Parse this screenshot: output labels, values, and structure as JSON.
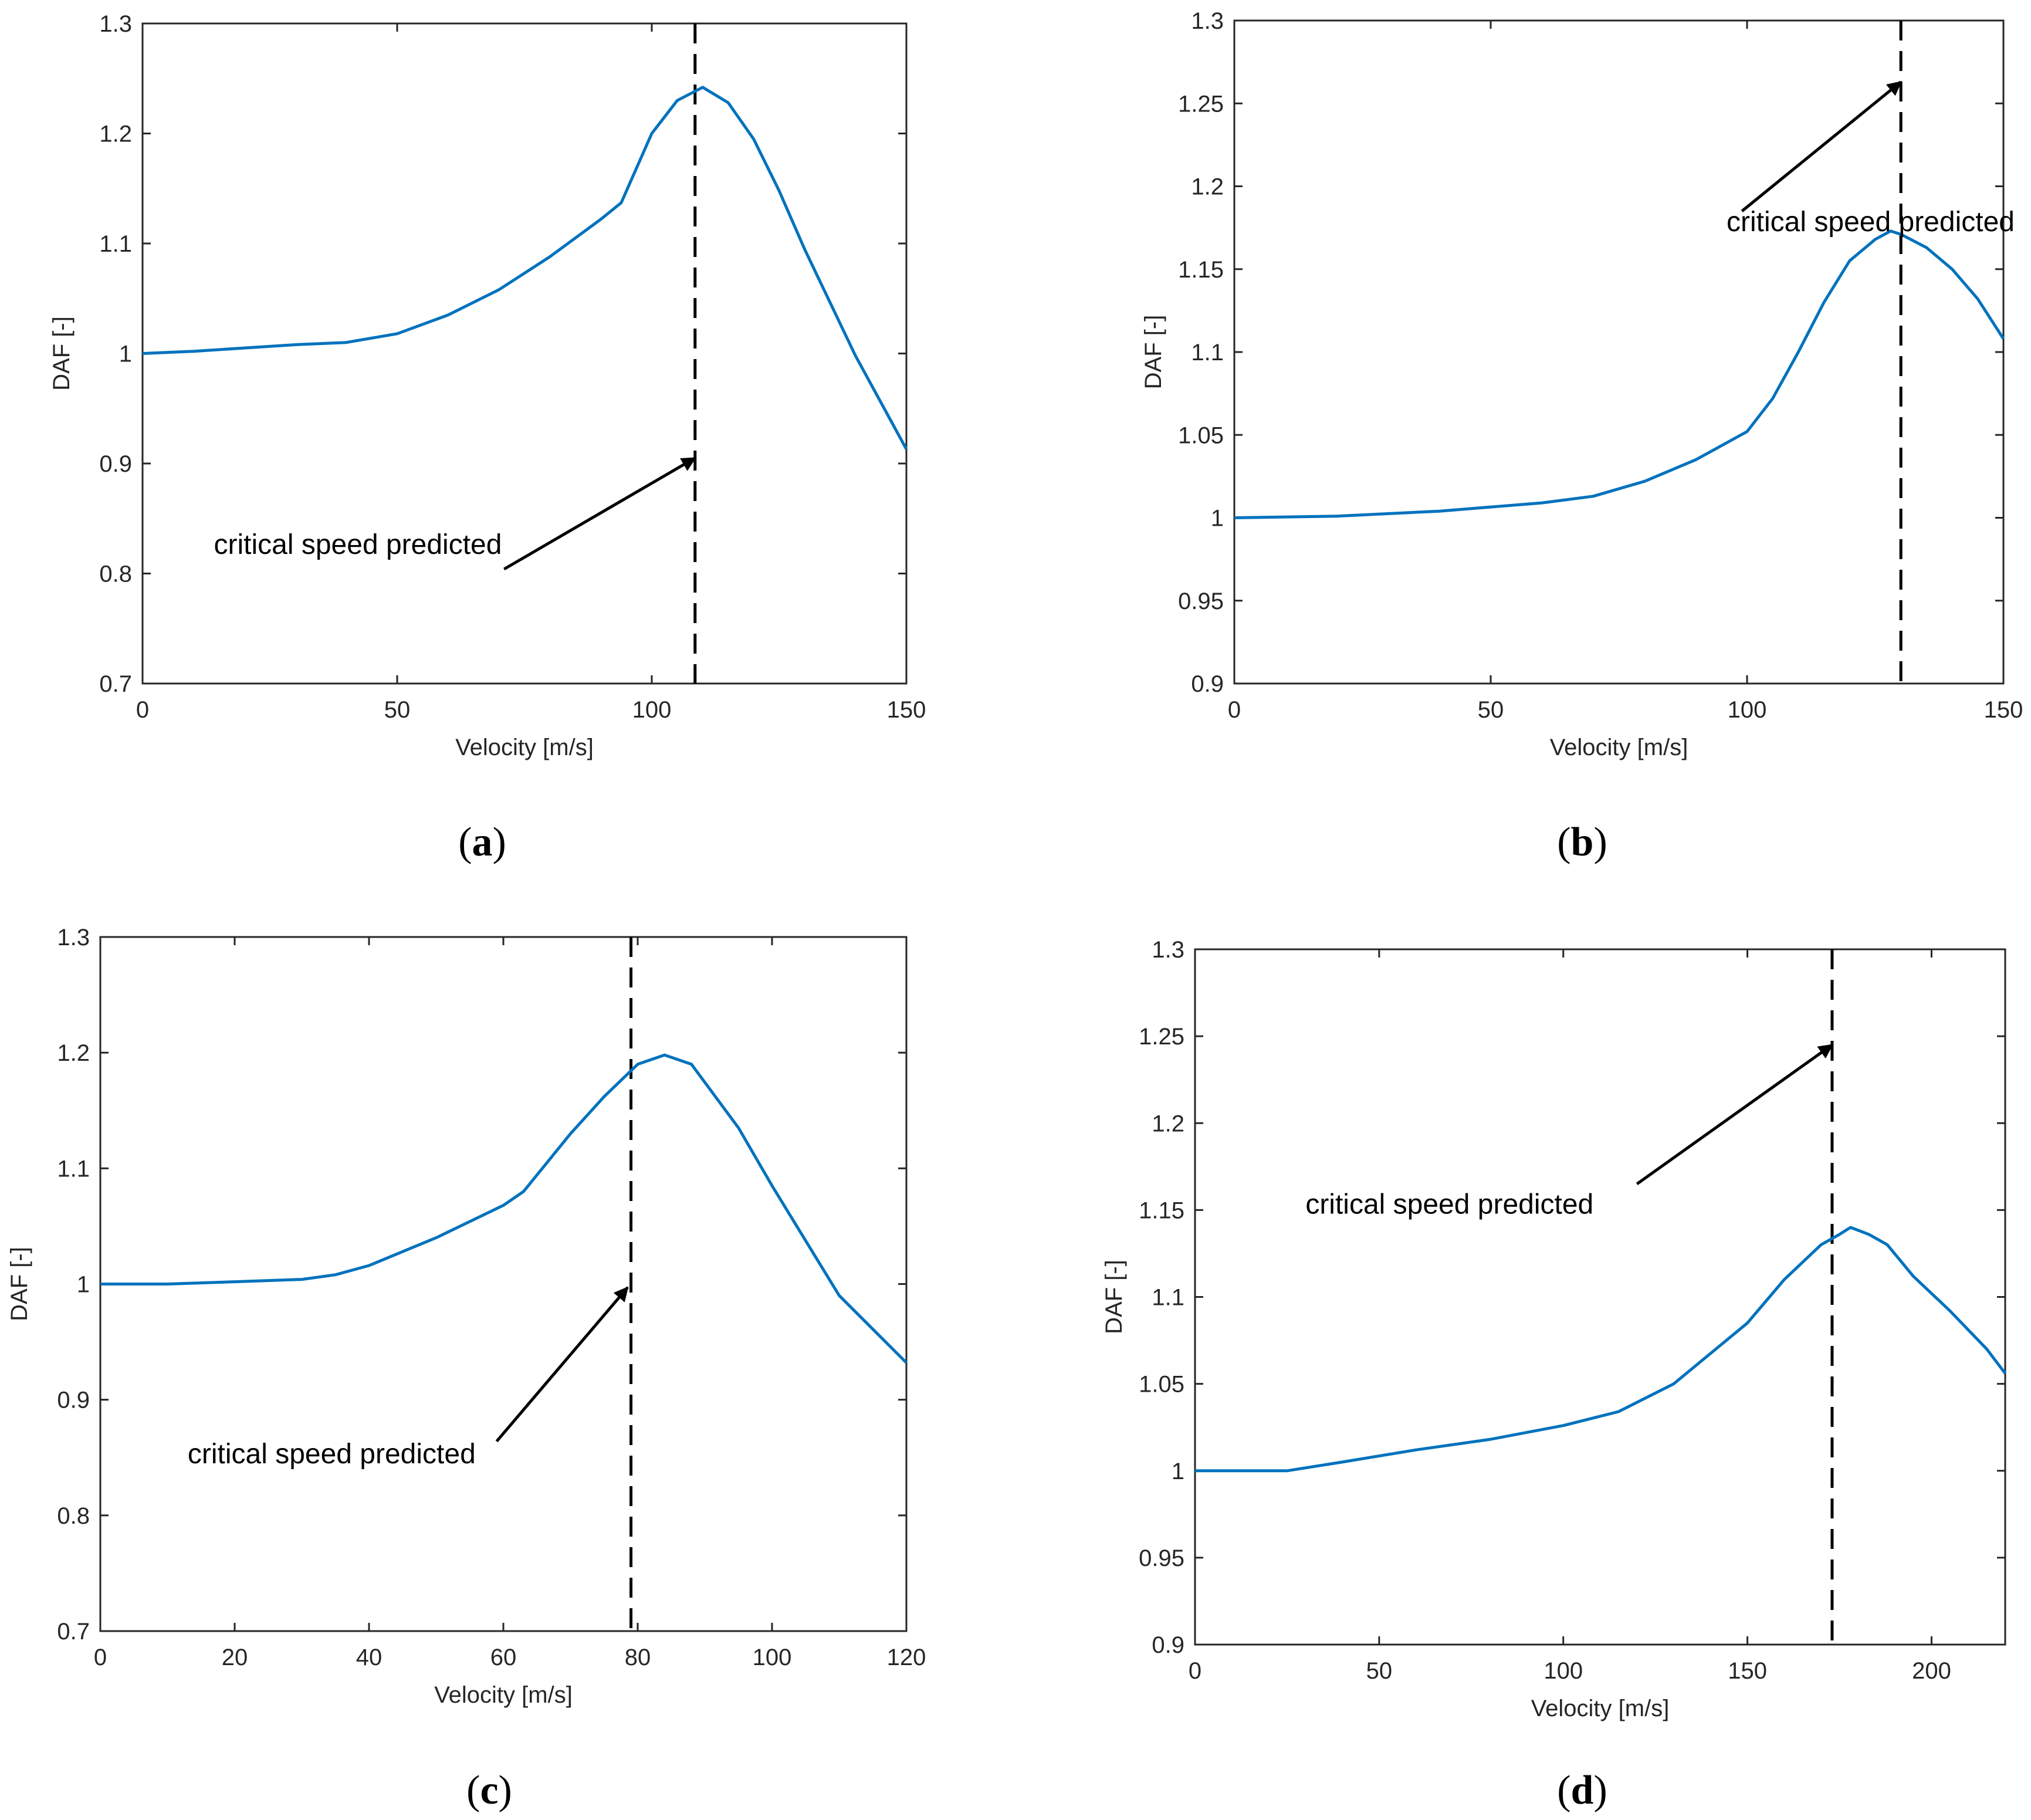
{
  "colors": {
    "series": "#0072BD",
    "axis": "#262626",
    "marker": "#000000"
  },
  "chart_data": [
    {
      "type": "line",
      "panel_label": "a",
      "xlabel": "Velocity [m/s]",
      "ylabel": "DAF [-]",
      "xlim": [
        0,
        150
      ],
      "ylim": [
        0.7,
        1.3
      ],
      "xticks": [
        0,
        50,
        100,
        150
      ],
      "yticks": [
        0.7,
        0.8,
        0.9,
        1,
        1.1,
        1.2,
        1.3
      ],
      "series": [
        {
          "name": "DAF",
          "x": [
            0,
            10,
            20,
            30,
            40,
            50,
            60,
            70,
            80,
            90,
            94,
            100,
            105,
            110,
            115,
            120,
            125,
            130,
            140,
            150
          ],
          "y": [
            1.0,
            1.002,
            1.005,
            1.008,
            1.01,
            1.018,
            1.035,
            1.058,
            1.088,
            1.122,
            1.137,
            1.2,
            1.23,
            1.242,
            1.228,
            1.195,
            1.148,
            1.095,
            0.998,
            0.913
          ]
        }
      ],
      "critical_speed": 108.5,
      "annotation": {
        "text": "critical speed predicted",
        "text_at": [
          14,
          0.818
        ],
        "arrow_from": [
          71,
          0.804
        ],
        "arrow_to": [
          108.5,
          0.905
        ]
      }
    },
    {
      "type": "line",
      "panel_label": "b",
      "xlabel": "Velocity [m/s]",
      "ylabel": "DAF [-]",
      "xlim": [
        0,
        150
      ],
      "ylim": [
        0.9,
        1.3
      ],
      "xticks": [
        0,
        50,
        100,
        150
      ],
      "yticks": [
        0.9,
        0.95,
        1,
        1.05,
        1.1,
        1.15,
        1.2,
        1.25,
        1.3
      ],
      "series": [
        {
          "name": "DAF",
          "x": [
            0,
            20,
            40,
            60,
            70,
            80,
            90,
            100,
            105,
            110,
            115,
            120,
            125,
            128,
            130,
            135,
            140,
            145,
            150
          ],
          "y": [
            1.0,
            1.001,
            1.004,
            1.009,
            1.013,
            1.022,
            1.035,
            1.052,
            1.072,
            1.1,
            1.13,
            1.155,
            1.168,
            1.173,
            1.171,
            1.163,
            1.15,
            1.132,
            1.108
          ]
        }
      ],
      "critical_speed": 130,
      "annotation": {
        "text": "critical speed predicted",
        "text_at": [
          96,
          1.173
        ],
        "arrow_from": [
          99,
          1.185
        ],
        "arrow_to": [
          130,
          1.263
        ]
      }
    },
    {
      "type": "line",
      "panel_label": "c",
      "xlabel": "Velocity [m/s]",
      "ylabel": "DAF [-]",
      "xlim": [
        0,
        120
      ],
      "ylim": [
        0.7,
        1.3
      ],
      "xticks": [
        0,
        20,
        40,
        60,
        80,
        100,
        120
      ],
      "yticks": [
        0.7,
        0.8,
        0.9,
        1,
        1.1,
        1.2,
        1.3
      ],
      "series": [
        {
          "name": "DAF",
          "x": [
            0,
            10,
            20,
            30,
            35,
            40,
            50,
            60,
            63,
            70,
            75,
            80,
            84,
            88,
            95,
            100,
            110,
            120
          ],
          "y": [
            1.0,
            1.0,
            1.002,
            1.004,
            1.008,
            1.016,
            1.04,
            1.068,
            1.08,
            1.13,
            1.162,
            1.19,
            1.198,
            1.19,
            1.135,
            1.085,
            0.99,
            0.932
          ]
        }
      ],
      "critical_speed": 79,
      "annotation": {
        "text": "critical speed predicted",
        "text_at": [
          13,
          0.845
        ],
        "arrow_from": [
          59,
          0.864
        ],
        "arrow_to": [
          78.5,
          0.997
        ]
      }
    },
    {
      "type": "line",
      "panel_label": "d",
      "xlabel": "Velocity [m/s]",
      "ylabel": "DAF [-]",
      "xlim": [
        0,
        220
      ],
      "ylim": [
        0.9,
        1.3
      ],
      "xticks": [
        0,
        50,
        100,
        150,
        200
      ],
      "yticks": [
        0.9,
        0.95,
        1,
        1.05,
        1.1,
        1.15,
        1.2,
        1.25,
        1.3
      ],
      "series": [
        {
          "name": "DAF",
          "x": [
            0,
            25,
            40,
            60,
            80,
            100,
            115,
            130,
            150,
            160,
            170,
            175,
            178,
            183,
            188,
            195,
            205,
            215,
            220
          ],
          "y": [
            1.0,
            1.0,
            1.005,
            1.012,
            1.018,
            1.026,
            1.034,
            1.05,
            1.085,
            1.11,
            1.13,
            1.136,
            1.14,
            1.136,
            1.13,
            1.112,
            1.092,
            1.07,
            1.056
          ]
        }
      ],
      "critical_speed": 173,
      "annotation": {
        "text": "critical speed predicted",
        "text_at": [
          30,
          1.148
        ],
        "arrow_from": [
          120,
          1.165
        ],
        "arrow_to": [
          173,
          1.245
        ]
      }
    }
  ]
}
